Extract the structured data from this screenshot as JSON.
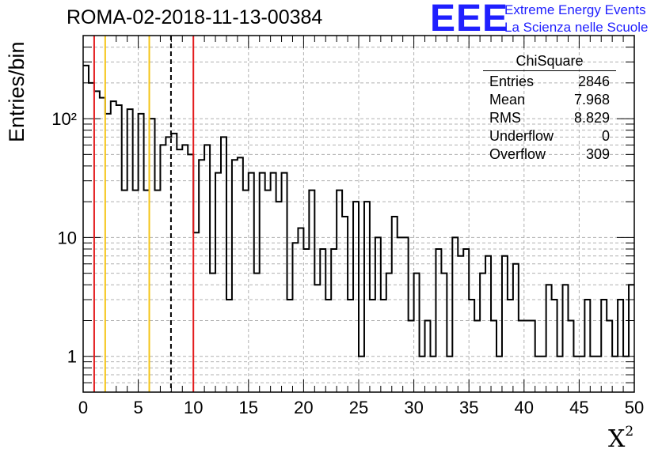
{
  "title": "ROMA-02-2018-11-13-00384",
  "logo": {
    "letters": "EEE",
    "line1": "Extreme Energy Events",
    "line2": "La Scienza nelle Scuole",
    "color": "#1f1fff"
  },
  "stats_box": {
    "title": "ChiSquare",
    "rows": [
      {
        "label": "Entries",
        "value": "2846"
      },
      {
        "label": "Mean",
        "value": "7.968"
      },
      {
        "label": "RMS",
        "value": "8.829"
      },
      {
        "label": "Underflow",
        "value": "0"
      },
      {
        "label": "Overflow",
        "value": "309"
      }
    ]
  },
  "chart_data": {
    "type": "bar",
    "style": "step-histogram",
    "ylabel": "Entries/bin",
    "xlabel_base": "X",
    "xlabel_sup": "2",
    "xlim": [
      0,
      50
    ],
    "ylim": [
      0.5,
      500
    ],
    "yscale": "log",
    "grid": true,
    "bin_width": 0.5,
    "x_ticks": [
      "0",
      "5",
      "10",
      "15",
      "20",
      "25",
      "30",
      "35",
      "40",
      "45",
      "50"
    ],
    "y_ticks": [
      "1",
      "10",
      "10²"
    ],
    "values": [
      280,
      200,
      170,
      150,
      110,
      140,
      130,
      25,
      120,
      25,
      110,
      25,
      100,
      25,
      60,
      70,
      75,
      55,
      60,
      50,
      11,
      45,
      60,
      5,
      35,
      70,
      3,
      45,
      47,
      25,
      35,
      5,
      35,
      25,
      35,
      20,
      35,
      3,
      9,
      12,
      8,
      25,
      4,
      8,
      3,
      8,
      25,
      15,
      3,
      20,
      1,
      20,
      3,
      10,
      3,
      5,
      15,
      10,
      10,
      2,
      5,
      1,
      2,
      1,
      8,
      5,
      1,
      10,
      7,
      8,
      3,
      2,
      5,
      7,
      2,
      1,
      7,
      3,
      6,
      2,
      2,
      2,
      1,
      1,
      4,
      3,
      1,
      4,
      2,
      1,
      1,
      3,
      1,
      1,
      3,
      2,
      1,
      3,
      1,
      4
    ],
    "vertical_lines": [
      {
        "x": 1,
        "color": "#e31a1c",
        "style": "solid"
      },
      {
        "x": 2,
        "color": "#f5c518",
        "style": "solid"
      },
      {
        "x": 6,
        "color": "#f5c518",
        "style": "solid"
      },
      {
        "x": 7.968,
        "color": "#000000",
        "style": "dashed"
      },
      {
        "x": 10,
        "color": "#e31a1c",
        "style": "solid"
      }
    ]
  }
}
